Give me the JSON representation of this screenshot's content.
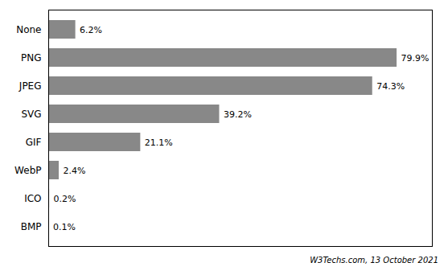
{
  "chart_data": {
    "type": "bar",
    "orientation": "horizontal",
    "categories": [
      "None",
      "PNG",
      "JPEG",
      "SVG",
      "GIF",
      "WebP",
      "ICO",
      "BMP"
    ],
    "values": [
      6.2,
      79.9,
      74.3,
      39.2,
      21.1,
      2.4,
      0.2,
      0.1
    ],
    "value_labels": [
      "6.2%",
      "79.9%",
      "74.3%",
      "39.2%",
      "21.1%",
      "2.4%",
      "0.2%",
      "0.1%"
    ],
    "data_labels": true,
    "color": "#888888",
    "xlim": [
      0,
      88
    ],
    "xticks": [],
    "tick_labels": "y",
    "grid": false,
    "annotations": [
      "W3Techs.com, 13 October 2021"
    ]
  }
}
